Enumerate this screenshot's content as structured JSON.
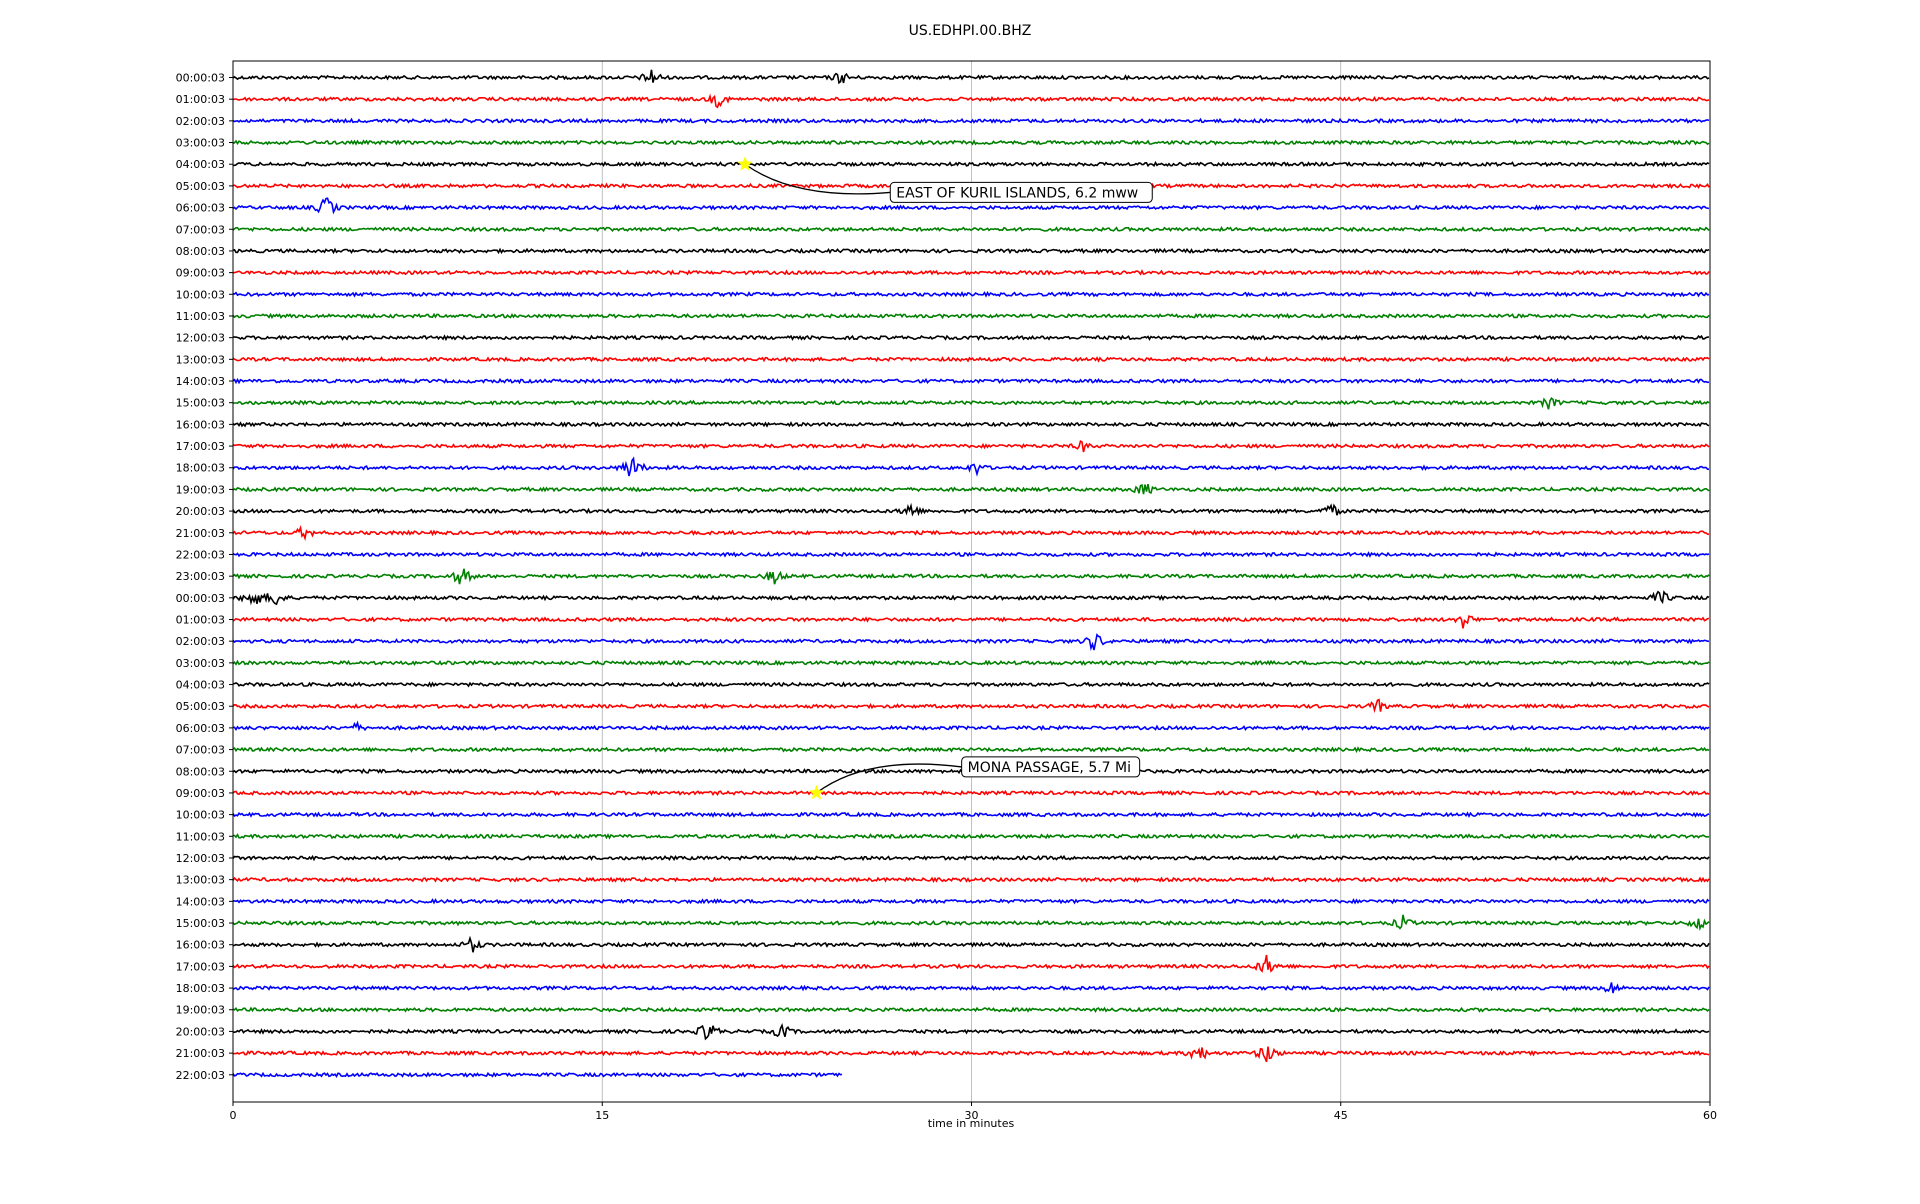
{
  "chart_data": {
    "type": "line",
    "title": "US.EDHPI.00.BHZ",
    "xlabel": "time in minutes",
    "ylabel": "",
    "xlim": [
      0,
      60
    ],
    "x_ticks": [
      0,
      15,
      30,
      45,
      60
    ],
    "x_tick_labels": [
      "0",
      "15",
      "30",
      "45",
      "60"
    ],
    "grid_x": true,
    "row_colors": [
      "#000000",
      "#ff0000",
      "#0000ff",
      "#008000"
    ],
    "rows": [
      "00:00:03",
      "01:00:03",
      "02:00:03",
      "03:00:03",
      "04:00:03",
      "05:00:03",
      "06:00:03",
      "07:00:03",
      "08:00:03",
      "09:00:03",
      "10:00:03",
      "11:00:03",
      "12:00:03",
      "13:00:03",
      "14:00:03",
      "15:00:03",
      "16:00:03",
      "17:00:03",
      "18:00:03",
      "19:00:03",
      "20:00:03",
      "21:00:03",
      "22:00:03",
      "23:00:03",
      "00:00:03",
      "01:00:03",
      "02:00:03",
      "03:00:03",
      "04:00:03",
      "05:00:03",
      "06:00:03",
      "07:00:03",
      "08:00:03",
      "09:00:03",
      "10:00:03",
      "11:00:03",
      "12:00:03",
      "13:00:03",
      "14:00:03",
      "15:00:03",
      "16:00:03",
      "17:00:03",
      "18:00:03",
      "19:00:03",
      "20:00:03",
      "21:00:03",
      "22:00:03"
    ],
    "last_row_end_minute": 24.8,
    "bursts": [
      {
        "row": 0,
        "minute": 17.0,
        "amplitude": 10
      },
      {
        "row": 0,
        "minute": 24.7,
        "amplitude": 8
      },
      {
        "row": 1,
        "minute": 19.7,
        "amplitude": 9
      },
      {
        "row": 6,
        "minute": 3.8,
        "amplitude": 12
      },
      {
        "row": 15,
        "minute": 53.5,
        "amplitude": 8
      },
      {
        "row": 17,
        "minute": 34.5,
        "amplitude": 7
      },
      {
        "row": 18,
        "minute": 16.2,
        "amplitude": 14
      },
      {
        "row": 18,
        "minute": 30.2,
        "amplitude": 8
      },
      {
        "row": 19,
        "minute": 37.0,
        "amplitude": 9
      },
      {
        "row": 20,
        "minute": 27.5,
        "amplitude": 10
      },
      {
        "row": 20,
        "minute": 44.6,
        "amplitude": 9
      },
      {
        "row": 21,
        "minute": 2.9,
        "amplitude": 8
      },
      {
        "row": 23,
        "minute": 9.3,
        "amplitude": 11
      },
      {
        "row": 23,
        "minute": 22.0,
        "amplitude": 9
      },
      {
        "row": 24,
        "minute": 0.8,
        "amplitude": 12
      },
      {
        "row": 24,
        "minute": 1.7,
        "amplitude": 11
      },
      {
        "row": 24,
        "minute": 58.0,
        "amplitude": 9
      },
      {
        "row": 25,
        "minute": 50.0,
        "amplitude": 10
      },
      {
        "row": 26,
        "minute": 35.0,
        "amplitude": 11
      },
      {
        "row": 29,
        "minute": 46.5,
        "amplitude": 8
      },
      {
        "row": 30,
        "minute": 5.0,
        "amplitude": 6
      },
      {
        "row": 39,
        "minute": 47.5,
        "amplitude": 9
      },
      {
        "row": 39,
        "minute": 59.5,
        "amplitude": 8
      },
      {
        "row": 40,
        "minute": 9.7,
        "amplitude": 9
      },
      {
        "row": 41,
        "minute": 42.0,
        "amplitude": 12
      },
      {
        "row": 42,
        "minute": 56.0,
        "amplitude": 8
      },
      {
        "row": 44,
        "minute": 19.3,
        "amplitude": 12
      },
      {
        "row": 44,
        "minute": 22.3,
        "amplitude": 9
      },
      {
        "row": 45,
        "minute": 39.2,
        "amplitude": 11
      },
      {
        "row": 45,
        "minute": 42.0,
        "amplitude": 12
      }
    ],
    "events": [
      {
        "label": "EAST OF KURIL ISLANDS, 6.2 mww",
        "row": 4,
        "minute": 20.8,
        "label_row": 5.3,
        "label_minute": 26.7
      },
      {
        "label": "MONA PASSAGE, 5.7 Mi",
        "row": 33,
        "minute": 23.7,
        "label_row": 31.8,
        "label_minute": 29.6
      }
    ],
    "marker_color": "#ffff00"
  }
}
